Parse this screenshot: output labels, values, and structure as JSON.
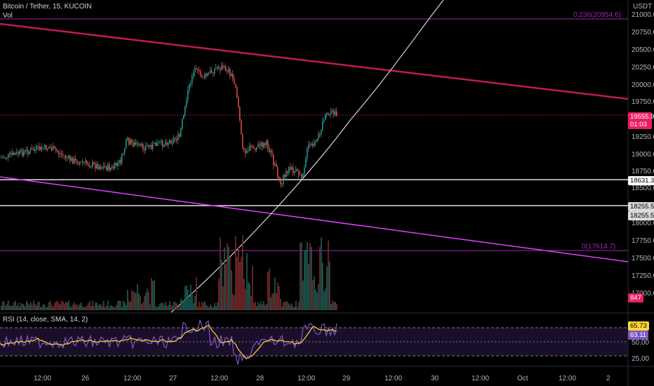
{
  "header": {
    "symbol_line": "Bitcoin / Tether, 15, KUCOIN",
    "vol_label": "Vol",
    "currency": "USDT"
  },
  "price_axis": {
    "ticks": [
      "21000.0",
      "20750.0",
      "20500.0",
      "20250.0",
      "20000.0",
      "19750.0",
      "19250.0",
      "19000.0",
      "18750.0",
      "18500.0",
      "18000.0",
      "17750.0",
      "17500.0",
      "17250.0",
      "17000.0"
    ]
  },
  "price_badges": {
    "current_price": "19555.9",
    "countdown": "01:03",
    "level_1": "18631.3",
    "level_2a": "18255.5",
    "level_2b": "18255.5",
    "volume": "847"
  },
  "fib": {
    "top_label": "0.236(20954.6)",
    "bottom_label": "0(17614.7)"
  },
  "rsi": {
    "legend": "RSI (14, close, SMA, 14, 2)",
    "ticks": [
      "50.00",
      "25.00"
    ],
    "value_rsi": "65.73",
    "value_sma": "63.11"
  },
  "time_axis": {
    "labels": [
      "12:00",
      "26",
      "12:00",
      "27",
      "12:00",
      "28",
      "12:00",
      "29",
      "12:00",
      "30",
      "12:00",
      "Oct",
      "12:00",
      "2"
    ]
  },
  "colors": {
    "up": "#26a69a",
    "down": "#ef5350",
    "trend_top": "#c2185b",
    "trend_bottom": "#e040fb",
    "fib_line": "#9c27b0",
    "curve": "#d1d4dc",
    "rsi_line": "#7e57c2",
    "rsi_sma": "#fdd835",
    "price_badge": "#e91e63"
  },
  "icons": {
    "drawings": [
      "trendline",
      "parabolic-curve",
      "horizontal-line",
      "fib-retracement"
    ]
  }
}
